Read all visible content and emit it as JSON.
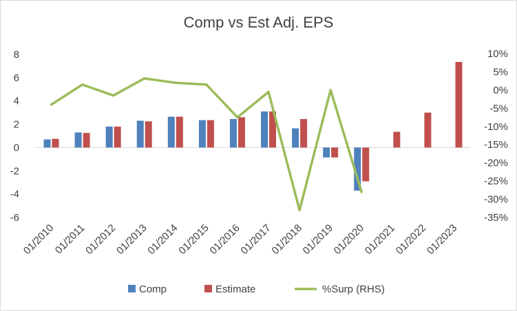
{
  "chart_data": {
    "type": "bar",
    "title": "Comp vs Est Adj. EPS",
    "xlabel": "",
    "ylabel": "",
    "categories": [
      "01/2010",
      "01/2011",
      "01/2012",
      "01/2013",
      "01/2014",
      "01/2015",
      "01/2016",
      "01/2017",
      "01/2018",
      "01/2019",
      "01/2020",
      "01/2021",
      "01/2022",
      "01/2023"
    ],
    "y_ticks": [
      "8",
      "6",
      "4",
      "2",
      "0",
      "-2",
      "-4",
      "-6"
    ],
    "y2_ticks": [
      "10%",
      "5%",
      "0%",
      "-5%",
      "-10%",
      "-15%",
      "-20%",
      "-25%",
      "-30%",
      "-35%"
    ],
    "ylim": [
      -6,
      8
    ],
    "y2lim": [
      -35,
      10
    ],
    "series": [
      {
        "name": "Comp",
        "kind": "bar",
        "axis": "left",
        "color": "#4f81bd",
        "values": [
          0.7,
          1.3,
          1.8,
          2.3,
          2.65,
          2.35,
          2.45,
          3.1,
          1.65,
          -0.85,
          -3.7,
          null,
          null,
          null
        ]
      },
      {
        "name": "Estimate",
        "kind": "bar",
        "axis": "left",
        "color": "#c0504d",
        "values": [
          0.75,
          1.25,
          1.8,
          2.25,
          2.65,
          2.35,
          2.6,
          3.1,
          2.45,
          -0.85,
          -2.9,
          1.35,
          3.0,
          7.35
        ]
      },
      {
        "name": "%Surp (RHS)",
        "kind": "line",
        "axis": "right",
        "color": "#9bbb59",
        "values": [
          -4.0,
          1.5,
          -1.5,
          3.2,
          2.0,
          1.5,
          -7.5,
          -0.5,
          -33.0,
          0.0,
          -28.0,
          null,
          null,
          null
        ]
      }
    ],
    "grid": false,
    "legend_position": "bottom"
  }
}
